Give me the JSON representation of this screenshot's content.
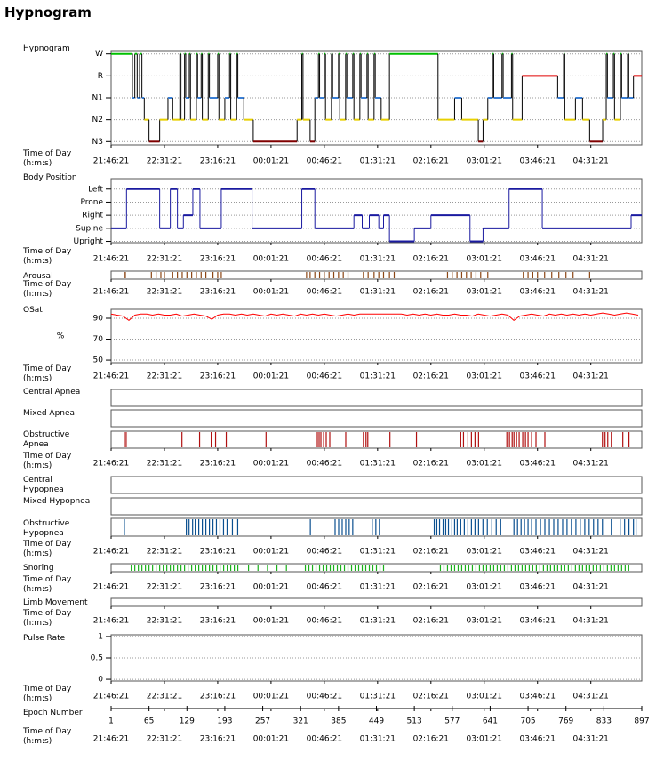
{
  "header": {
    "title": "Hypnogram"
  },
  "time_axis": {
    "label": "Time of Day (h:m:s)",
    "xlim": [
      0,
      448
    ],
    "xticks": [
      {
        "value": 0,
        "label": "21:46:21"
      },
      {
        "value": 45,
        "label": "22:31:21"
      },
      {
        "value": 90,
        "label": "23:16:21"
      },
      {
        "value": 135,
        "label": "00:01:21"
      },
      {
        "value": 180,
        "label": "00:46:21"
      },
      {
        "value": 225,
        "label": "01:31:21"
      },
      {
        "value": 270,
        "label": "02:16:21"
      },
      {
        "value": 315,
        "label": "03:01:21"
      },
      {
        "value": 360,
        "label": "03:46:21"
      },
      {
        "value": 405,
        "label": "04:31:21"
      }
    ]
  },
  "chart_data": [
    {
      "type": "step",
      "title": "Hypnogram",
      "ylim": [
        -0.15,
        4.15
      ],
      "grid": true,
      "yticks": [
        {
          "value": 4,
          "label": "W"
        },
        {
          "value": 3,
          "label": "R"
        },
        {
          "value": 2,
          "label": "N1"
        },
        {
          "value": 1,
          "label": "N2"
        },
        {
          "value": 0,
          "label": "N3"
        }
      ],
      "level_colors": [
        "#00c000",
        "#e00000",
        "#3a7fd5",
        "#e8d000",
        "#800000"
      ],
      "transition_color": "#000000",
      "x": [
        0,
        18,
        20,
        22,
        24,
        26,
        28,
        32,
        41,
        48,
        52,
        58,
        59,
        62,
        63,
        66,
        67,
        72,
        73,
        76,
        77,
        82,
        83,
        90,
        91,
        96,
        100,
        101,
        106,
        107,
        112,
        120,
        157,
        161,
        162,
        168,
        172,
        175,
        176,
        180,
        181,
        186,
        187,
        192,
        193,
        198,
        199,
        204,
        205,
        210,
        211,
        216,
        217,
        222,
        223,
        228,
        235,
        276,
        290,
        296,
        310,
        314,
        318,
        322,
        323,
        330,
        331,
        338,
        339,
        347,
        377,
        382,
        383,
        392,
        398,
        404,
        415,
        418,
        419,
        424,
        425,
        430,
        431,
        436,
        437,
        441
      ],
      "values": [
        4,
        2,
        4,
        2,
        4,
        2,
        1,
        0,
        1,
        2,
        1,
        4,
        1,
        4,
        2,
        4,
        1,
        4,
        2,
        4,
        1,
        4,
        2,
        4,
        1,
        2,
        4,
        1,
        4,
        2,
        1,
        0,
        1,
        4,
        1,
        0,
        2,
        4,
        2,
        4,
        1,
        4,
        2,
        4,
        1,
        4,
        2,
        4,
        1,
        4,
        2,
        4,
        1,
        4,
        2,
        1,
        4,
        1,
        2,
        1,
        0,
        1,
        2,
        4,
        2,
        4,
        2,
        4,
        1,
        3,
        2,
        4,
        1,
        2,
        1,
        0,
        1,
        4,
        2,
        4,
        1,
        4,
        2,
        4,
        2,
        3
      ]
    },
    {
      "type": "step",
      "title": "Body Position",
      "ylim": [
        -0.1,
        4.8
      ],
      "grid": true,
      "color": "#1a1aa0",
      "yticks": [
        {
          "value": 4,
          "label": "Left"
        },
        {
          "value": 3,
          "label": "Prone"
        },
        {
          "value": 2,
          "label": "Right"
        },
        {
          "value": 1,
          "label": "Supine"
        },
        {
          "value": 0,
          "label": "Upright"
        }
      ],
      "x": [
        0,
        13,
        41,
        50,
        56,
        61,
        69,
        75,
        93,
        119,
        161,
        172,
        205,
        212,
        218,
        226,
        230,
        235,
        256,
        270,
        303,
        314,
        336,
        364,
        439
      ],
      "values": [
        1,
        4,
        1,
        4,
        1,
        2,
        4,
        1,
        4,
        1,
        4,
        1,
        2,
        1,
        2,
        1,
        2,
        0,
        1,
        2,
        0,
        1,
        4,
        1,
        2
      ]
    },
    {
      "type": "events",
      "title": "Arousal",
      "color": "#8b4513",
      "events": [
        11,
        12,
        34,
        38,
        42,
        45,
        52,
        56,
        60,
        64,
        68,
        72,
        76,
        80,
        86,
        90,
        93,
        165,
        168,
        172,
        176,
        180,
        184,
        188,
        192,
        196,
        200,
        213,
        217,
        222,
        226,
        230,
        235,
        239,
        284,
        288,
        292,
        296,
        300,
        304,
        308,
        312,
        318,
        348,
        352,
        356,
        360,
        366,
        372,
        378,
        384,
        390,
        404
      ]
    },
    {
      "type": "line",
      "title": "OSat",
      "ylabel": "%",
      "ylim": [
        47.5,
        98.5
      ],
      "yticks": [
        50,
        70,
        90
      ],
      "grid": true,
      "color": "#ff0000",
      "x": [
        0,
        5,
        10,
        15,
        20,
        25,
        30,
        35,
        40,
        45,
        50,
        55,
        60,
        65,
        70,
        75,
        80,
        85,
        90,
        95,
        100,
        105,
        110,
        115,
        120,
        125,
        130,
        135,
        140,
        145,
        150,
        155,
        160,
        165,
        170,
        175,
        180,
        185,
        190,
        195,
        200,
        205,
        210,
        215,
        220,
        225,
        230,
        235,
        240,
        245,
        250,
        255,
        260,
        265,
        270,
        275,
        280,
        285,
        290,
        295,
        300,
        305,
        310,
        315,
        320,
        325,
        330,
        335,
        340,
        345,
        350,
        355,
        360,
        365,
        370,
        375,
        380,
        385,
        390,
        395,
        400,
        405,
        410,
        415,
        420,
        425,
        430,
        435,
        440,
        445
      ],
      "values": [
        94,
        93,
        92,
        88,
        93,
        94,
        94,
        93,
        94,
        93,
        93,
        94,
        92,
        93,
        94,
        93,
        92,
        89,
        93,
        94,
        94,
        93,
        94,
        93,
        94,
        93,
        92,
        94,
        93,
        94,
        93,
        92,
        94,
        93,
        94,
        93,
        94,
        93,
        92,
        93,
        94,
        93,
        94,
        94,
        94,
        94,
        94,
        94,
        94,
        94,
        93,
        94,
        93,
        94,
        93,
        94,
        93,
        93,
        94,
        93,
        93,
        92,
        94,
        93,
        92,
        93,
        94,
        93,
        88,
        92,
        93,
        94,
        93,
        92,
        94,
        93,
        94,
        93,
        94,
        93,
        94,
        93,
        94,
        95,
        94,
        93,
        94,
        95,
        94,
        93
      ]
    },
    {
      "type": "events",
      "title": "Central Apnea",
      "color": "#b01010",
      "events": []
    },
    {
      "type": "events",
      "title": "Mixed Apnea",
      "color": "#b01010",
      "events": []
    },
    {
      "type": "events",
      "title": "Obstructive Apnea",
      "color": "#b01010",
      "events": [
        11.2,
        12.7,
        59.8,
        74.7,
        84.5,
        88.2,
        97.2,
        130.8,
        174.1,
        175.6,
        177.1,
        179.4,
        181.6,
        184.6,
        198.1,
        213,
        215.2,
        216.7,
        235.4,
        257.8,
        295.2,
        297.5,
        301.2,
        304.2,
        307.2,
        310.2,
        334.1,
        336.3,
        338.6,
        340.1,
        342.3,
        344.5,
        347.5,
        349.8,
        352,
        355,
        358.7,
        366.2,
        414.8,
        417,
        419.3,
        422.3,
        432,
        437.2
      ]
    },
    {
      "type": "events",
      "title": "Central Hypopnea",
      "color": "#0a4f8f",
      "events": []
    },
    {
      "type": "events",
      "title": "Mixed Hypopnea",
      "color": "#0a4f8f",
      "events": []
    },
    {
      "type": "events",
      "title": "Obstructive Hypopnea",
      "color": "#0a4f8f",
      "events": [
        11.2,
        63.5,
        65.8,
        68.8,
        71,
        74,
        77,
        80,
        83,
        86,
        88.9,
        91.9,
        94.9,
        97.9,
        102.4,
        106.9,
        168.2,
        189.1,
        192.1,
        195.1,
        198.1,
        201,
        204,
        220.5,
        223.5,
        226.5,
        272.8,
        275,
        277.3,
        280.3,
        282.5,
        284.8,
        287.7,
        290,
        292.2,
        295.2,
        298.2,
        301.2,
        304.2,
        307.2,
        310.2,
        313.9,
        317.6,
        321.4,
        325.1,
        328.9,
        340.1,
        343.1,
        346.1,
        349,
        352,
        355,
        358.7,
        362.5,
        366.2,
        370,
        373.7,
        377.4,
        381.2,
        384.9,
        388.6,
        392.4,
        396.1,
        399.9,
        403.6,
        407.3,
        411.1,
        414.8,
        422.3,
        429.8,
        433.5,
        437.2,
        441,
        443.2
      ]
    },
    {
      "type": "events",
      "title": "Snoring",
      "color": "#1ab01a",
      "events": [
        17,
        20,
        23,
        26,
        29,
        32,
        35,
        38,
        41,
        44,
        47,
        50,
        53,
        56,
        59,
        62,
        65,
        68,
        71,
        74,
        77,
        80,
        83,
        86,
        89,
        92,
        95,
        98,
        101,
        104,
        107,
        116,
        124,
        132,
        140,
        148,
        164,
        167,
        170,
        173,
        176,
        179,
        182,
        185,
        188,
        191,
        194,
        197,
        200,
        203,
        206,
        209,
        212,
        215,
        218,
        221,
        224,
        227,
        230,
        278,
        281,
        284,
        287,
        290,
        293,
        296,
        299,
        302,
        305,
        308,
        311,
        314,
        317,
        320,
        323,
        326,
        329,
        332,
        335,
        338,
        341,
        344,
        347,
        350,
        353,
        356,
        359,
        362,
        365,
        368,
        371,
        374,
        377,
        380,
        383,
        386,
        389,
        392,
        395,
        398,
        401,
        404,
        407,
        410,
        413,
        416,
        419,
        422,
        425,
        428,
        431,
        434,
        437
      ]
    },
    {
      "type": "events",
      "title": "Limb Movement",
      "color": "#000000",
      "events": []
    },
    {
      "type": "line",
      "title": "Pulse Rate",
      "ylim": [
        -0.04,
        1.04
      ],
      "yticks": [
        0,
        0.5,
        1
      ],
      "grid": true,
      "color": "#000000"
    },
    {
      "type": "axis",
      "title": "Epoch Number",
      "xlim": [
        1,
        897
      ],
      "xticks": [
        1,
        65,
        129,
        193,
        257,
        321,
        385,
        449,
        513,
        577,
        641,
        705,
        769,
        833,
        897
      ]
    }
  ]
}
